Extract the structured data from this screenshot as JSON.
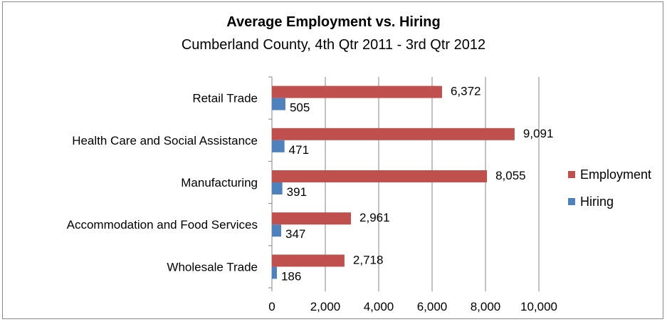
{
  "chart_data": {
    "type": "bar",
    "orientation": "horizontal",
    "title": "Average Employment vs. Hiring",
    "subtitle": "Cumberland County, 4th Qtr 2011 - 3rd Qtr 2012",
    "categories": [
      "Retail Trade",
      "Health Care and Social Assistance",
      "Manufacturing",
      "Accommodation and Food Services",
      "Wholesale Trade"
    ],
    "series": [
      {
        "name": "Employment",
        "color": "#c0504d",
        "values": [
          6372,
          9091,
          8055,
          2961,
          2718
        ],
        "labels": [
          "6,372",
          "9,091",
          "8,055",
          "2,961",
          "2,718"
        ]
      },
      {
        "name": "Hiring",
        "color": "#4f81bd",
        "values": [
          505,
          471,
          391,
          347,
          186
        ],
        "labels": [
          "505",
          "471",
          "391",
          "347",
          "186"
        ]
      }
    ],
    "xlim": [
      0,
      10000
    ],
    "xticks": [
      0,
      2000,
      4000,
      6000,
      8000,
      10000
    ],
    "xtick_labels": [
      "0",
      "2,000",
      "4,000",
      "6,000",
      "8,000",
      "10,000"
    ],
    "grid": true,
    "legend_position": "right"
  }
}
